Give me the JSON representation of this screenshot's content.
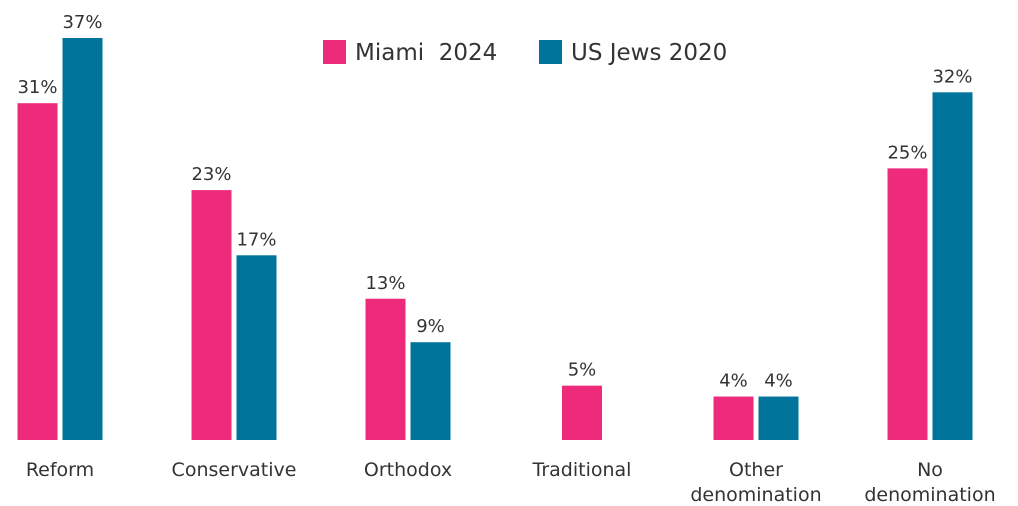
{
  "chart_data": {
    "type": "bar",
    "categories": [
      "Reform",
      "Conservative",
      "Orthodox",
      "Traditional",
      "Other denomination",
      "No denomination"
    ],
    "series": [
      {
        "name": "Miami  2024",
        "color": "#ee2b7b",
        "values": [
          31,
          23,
          13,
          5,
          4,
          25
        ],
        "value_labels": [
          "31%",
          "23%",
          "13%",
          "5%",
          "4%",
          "25%"
        ]
      },
      {
        "name": "US Jews 2020",
        "color": "#00749a",
        "values": [
          37,
          17,
          9,
          null,
          4,
          32
        ],
        "value_labels": [
          "37%",
          "17%",
          "9%",
          null,
          "4%",
          "32%"
        ]
      }
    ],
    "legend": "top"
  }
}
